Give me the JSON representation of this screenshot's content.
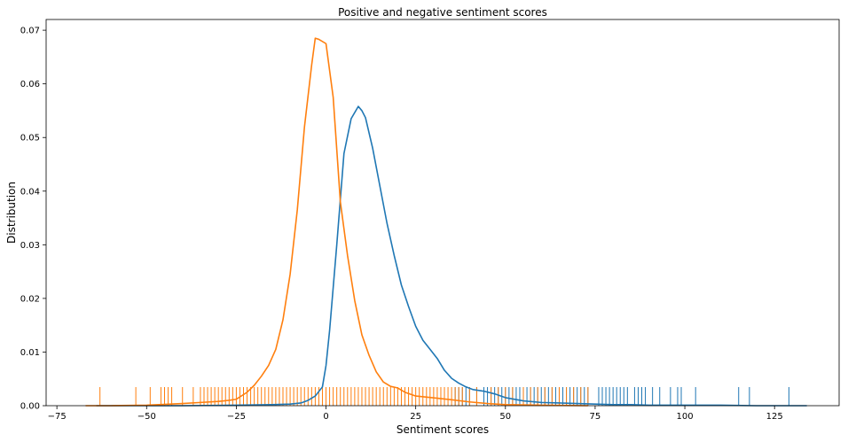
{
  "chart_data": {
    "type": "line",
    "title": "Positive and negative sentiment scores",
    "xlabel": "Sentiment scores",
    "ylabel": "Distribution",
    "xlim": [
      -78,
      143
    ],
    "ylim": [
      0,
      0.072
    ],
    "grid": false,
    "x_ticks": [
      {
        "value": -75,
        "label": "−75"
      },
      {
        "value": -50,
        "label": "−50"
      },
      {
        "value": -25,
        "label": "−25"
      },
      {
        "value": 0,
        "label": "0"
      },
      {
        "value": 25,
        "label": "25"
      },
      {
        "value": 50,
        "label": "50"
      },
      {
        "value": 75,
        "label": "75"
      },
      {
        "value": 100,
        "label": "100"
      },
      {
        "value": 125,
        "label": "125"
      }
    ],
    "y_ticks": [
      {
        "value": 0,
        "label": "0.00"
      },
      {
        "value": 0.01,
        "label": "0.01"
      },
      {
        "value": 0.02,
        "label": "0.02"
      },
      {
        "value": 0.03,
        "label": "0.03"
      },
      {
        "value": 0.04,
        "label": "0.04"
      },
      {
        "value": 0.05,
        "label": "0.05"
      },
      {
        "value": 0.06,
        "label": "0.06"
      },
      {
        "value": 0.07,
        "label": "0.07"
      }
    ],
    "series": [
      {
        "color": "#1f77b4",
        "x": [
          -64,
          -40,
          -25,
          -15,
          -10,
          -7,
          -5,
          -3,
          -1,
          0,
          1,
          3,
          5,
          7,
          9,
          10,
          11,
          13,
          15,
          17,
          19,
          21,
          23,
          25,
          27,
          29,
          31,
          33,
          35,
          37,
          39,
          41,
          44,
          47,
          50,
          55,
          60,
          65,
          70,
          75,
          80,
          85,
          90,
          100,
          110,
          120,
          134
        ],
        "y": [
          0,
          0,
          0.0001,
          0.0002,
          0.0003,
          0.0005,
          0.001,
          0.0018,
          0.0035,
          0.0075,
          0.014,
          0.03,
          0.047,
          0.0535,
          0.0558,
          0.055,
          0.0537,
          0.048,
          0.041,
          0.034,
          0.028,
          0.0225,
          0.0185,
          0.0148,
          0.0122,
          0.0105,
          0.0088,
          0.0066,
          0.0051,
          0.0042,
          0.0035,
          0.003,
          0.0027,
          0.0022,
          0.0015,
          0.0009,
          0.0006,
          0.0005,
          0.0004,
          0.0003,
          0.0002,
          0.0002,
          0.0001,
          0.0001,
          0.0001,
          0,
          0
        ]
      },
      {
        "color": "#ff7f0e",
        "x": [
          -67,
          -60,
          -50,
          -40,
          -35,
          -30,
          -27,
          -25,
          -22,
          -20,
          -18,
          -16,
          -14,
          -12,
          -10,
          -8,
          -6,
          -4,
          -3,
          -2,
          0,
          2,
          4,
          6,
          8,
          10,
          12,
          14,
          16,
          18,
          20,
          22,
          25,
          28,
          31,
          35,
          40,
          45,
          50,
          60,
          73
        ],
        "y": [
          0,
          0,
          0.0001,
          0.0004,
          0.0006,
          0.0008,
          0.001,
          0.0012,
          0.0025,
          0.0038,
          0.0055,
          0.0075,
          0.0105,
          0.016,
          0.0245,
          0.0365,
          0.052,
          0.0635,
          0.0685,
          0.0683,
          0.0675,
          0.0575,
          0.038,
          0.028,
          0.0196,
          0.0132,
          0.0094,
          0.0063,
          0.0044,
          0.0036,
          0.0033,
          0.0025,
          0.0018,
          0.0016,
          0.0014,
          0.0011,
          0.0007,
          0.0004,
          0.0002,
          0.0001,
          0
        ]
      }
    ],
    "rug": [
      {
        "color": "#1f77b4",
        "values": [
          36,
          37,
          38,
          39,
          40,
          42,
          44,
          45,
          46,
          47,
          48,
          49,
          50,
          51,
          52,
          53,
          54,
          55,
          56,
          57,
          58,
          59,
          60,
          61,
          62,
          63,
          64,
          65,
          66,
          67,
          68,
          69,
          70,
          71,
          72,
          73,
          76,
          77,
          78,
          79,
          80,
          81,
          82,
          83,
          84,
          86,
          87,
          88,
          89,
          91,
          93,
          96,
          98,
          99,
          103,
          115,
          118,
          129
        ]
      },
      {
        "color": "#ff7f0e",
        "values": [
          -63,
          -53,
          -49,
          -46,
          -45,
          -44,
          -43,
          -40,
          -37,
          -35,
          -34,
          -33,
          -32,
          -31,
          -30,
          -29,
          -28,
          -27,
          -26,
          -25,
          -24,
          -23,
          -22,
          -21,
          -20,
          -19,
          -18,
          -17,
          -16,
          -15,
          -14,
          -13,
          -12,
          -11,
          -10,
          -9,
          -8,
          -7,
          -6,
          -5,
          -4,
          -3,
          -2,
          -1,
          0,
          1,
          2,
          3,
          4,
          5,
          6,
          7,
          8,
          9,
          10,
          11,
          12,
          13,
          14,
          15,
          16,
          17,
          18,
          19,
          20,
          21,
          22,
          23,
          24,
          25,
          26,
          27,
          28,
          29,
          30,
          31,
          32,
          33,
          34,
          35,
          36,
          37,
          38,
          40,
          42,
          46,
          48,
          50,
          52,
          55,
          57,
          59,
          61,
          63,
          65,
          67,
          69,
          71,
          73
        ]
      }
    ]
  }
}
